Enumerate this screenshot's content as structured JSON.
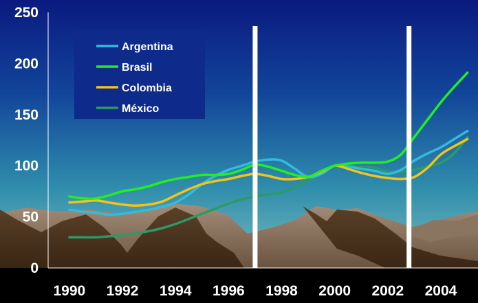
{
  "chart_data": {
    "type": "line",
    "title": "",
    "xlabel": "",
    "ylabel": "",
    "xlim": [
      1989.2,
      2005.4
    ],
    "ylim": [
      0,
      250
    ],
    "x_ticks": [
      "1990",
      "1992",
      "1994",
      "1996",
      "1998",
      "2000",
      "2002",
      "2004"
    ],
    "y_ticks": [
      "0",
      "50",
      "100",
      "150",
      "200",
      "250"
    ],
    "grid": false,
    "legend_position": "top-left",
    "background": "blue-to-teal gradient sky with brown mountain silhouettes",
    "vertical_markers": [
      1997.0,
      2002.8
    ],
    "series": [
      {
        "name": "Argentina",
        "color": "#33bbdd",
        "x": [
          1990,
          1990.5,
          1991,
          1991.5,
          1992,
          1992.5,
          1993,
          1993.5,
          1994,
          1994.5,
          1995,
          1995.5,
          1996,
          1996.5,
          1997,
          1997.5,
          1998,
          1998.5,
          1999,
          1999.5,
          2000,
          2000.5,
          2001,
          2001.5,
          2002,
          2002.5,
          2003,
          2003.5,
          2004,
          2004.5,
          2005
        ],
        "values": [
          57,
          55,
          54,
          52,
          53,
          55,
          57,
          60,
          64,
          72,
          82,
          90,
          96,
          100,
          104,
          106,
          105,
          97,
          89,
          92,
          100,
          99,
          97,
          95,
          92,
          96,
          105,
          112,
          118,
          126,
          134
        ]
      },
      {
        "name": "Brasil",
        "color": "#22ee22",
        "x": [
          1990,
          1990.5,
          1991,
          1991.5,
          1992,
          1992.5,
          1993,
          1993.5,
          1994,
          1994.5,
          1995,
          1995.5,
          1996,
          1996.5,
          1997,
          1997.5,
          1998,
          1998.5,
          1999,
          1999.5,
          2000,
          2000.5,
          2001,
          2001.5,
          2002,
          2002.5,
          2003,
          2003.5,
          2004,
          2004.5,
          2005
        ],
        "values": [
          70,
          68,
          68,
          71,
          75,
          77,
          80,
          84,
          87,
          89,
          91,
          91,
          92,
          96,
          101,
          99,
          95,
          91,
          89,
          95,
          100,
          102,
          103,
          103,
          104,
          111,
          128,
          145,
          162,
          177,
          191
        ]
      },
      {
        "name": "Colombia",
        "color": "#f2c418",
        "x": [
          1990,
          1990.5,
          1991,
          1991.5,
          1992,
          1992.5,
          1993,
          1993.5,
          1994,
          1994.5,
          1995,
          1995.5,
          1996,
          1996.5,
          1997,
          1997.5,
          1998,
          1998.5,
          1999,
          1999.5,
          2000,
          2000.5,
          2001,
          2001.5,
          2002,
          2002.5,
          2003,
          2003.5,
          2004,
          2004.5,
          2005
        ],
        "values": [
          64,
          65,
          66,
          64,
          62,
          61,
          62,
          65,
          71,
          77,
          82,
          85,
          87,
          90,
          92,
          90,
          87,
          87,
          89,
          94,
          100,
          97,
          93,
          90,
          88,
          87,
          89,
          98,
          111,
          119,
          126
        ]
      },
      {
        "name": "México",
        "color": "#2c9a66",
        "x": [
          1990,
          1990.5,
          1991,
          1991.5,
          1992,
          1992.5,
          1993,
          1993.5,
          1994,
          1994.5,
          1995,
          1995.5,
          1996,
          1996.5,
          1997,
          1997.5,
          1998,
          1998.5,
          1999,
          1999.5,
          2000,
          2000.5,
          2001,
          2001.5,
          2002,
          2002.5,
          2003,
          2003.5,
          2004,
          2004.5,
          2005
        ],
        "values": [
          30,
          30,
          30,
          31,
          32,
          34,
          36,
          39,
          43,
          48,
          53,
          58,
          63,
          67,
          70,
          72,
          74,
          79,
          85,
          93,
          100,
          100,
          99,
          98,
          94,
          94,
          96,
          99,
          103,
          112,
          128
        ]
      }
    ]
  }
}
